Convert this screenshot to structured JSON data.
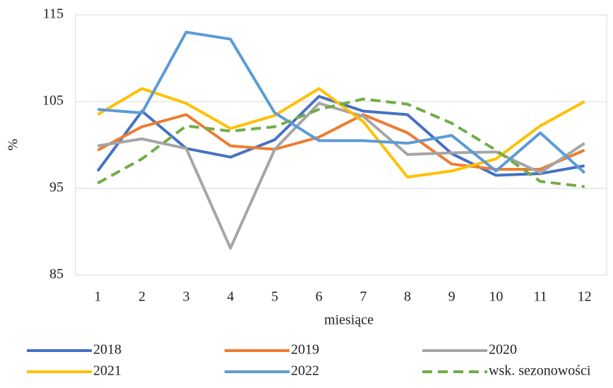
{
  "chart_data": {
    "type": "line",
    "y_label": "%",
    "x_label": "miesiące",
    "categories": [
      "1",
      "2",
      "3",
      "4",
      "5",
      "6",
      "7",
      "8",
      "9",
      "10",
      "11",
      "12"
    ],
    "ylim": [
      85,
      115
    ],
    "yticks": [
      85,
      95,
      105,
      115
    ],
    "grid": true,
    "series": [
      {
        "name": "2018",
        "color": "#4472c4",
        "dash": false,
        "values": [
          97.0,
          103.9,
          99.6,
          98.6,
          100.6,
          105.6,
          103.9,
          103.5,
          99.0,
          96.5,
          96.7,
          97.6
        ]
      },
      {
        "name": "2019",
        "color": "#ed7d31",
        "dash": false,
        "values": [
          99.4,
          102.1,
          103.5,
          99.9,
          99.5,
          100.9,
          103.5,
          101.4,
          97.8,
          97.2,
          97.2,
          99.4
        ]
      },
      {
        "name": "2020",
        "color": "#a5a5a5",
        "dash": false,
        "values": [
          99.9,
          100.7,
          99.6,
          88.1,
          99.5,
          104.8,
          103.3,
          98.9,
          99.1,
          99.2,
          96.8,
          100.2
        ]
      },
      {
        "name": "2021",
        "color": "#ffc000",
        "dash": false,
        "values": [
          103.5,
          106.5,
          104.8,
          101.9,
          103.4,
          106.5,
          102.7,
          96.3,
          97.0,
          98.4,
          102.2,
          105.0
        ]
      },
      {
        "name": "2022",
        "color": "#5b9bd5",
        "dash": false,
        "values": [
          104.1,
          103.7,
          113.0,
          112.2,
          103.7,
          100.5,
          100.5,
          100.2,
          101.1,
          97.0,
          101.4,
          96.8
        ]
      },
      {
        "name": "wsk. sezonowości",
        "color": "#70ad47",
        "dash": true,
        "values": [
          95.6,
          98.4,
          102.2,
          101.6,
          102.1,
          104.1,
          105.3,
          104.7,
          102.5,
          99.4,
          95.8,
          95.2
        ]
      }
    ]
  }
}
